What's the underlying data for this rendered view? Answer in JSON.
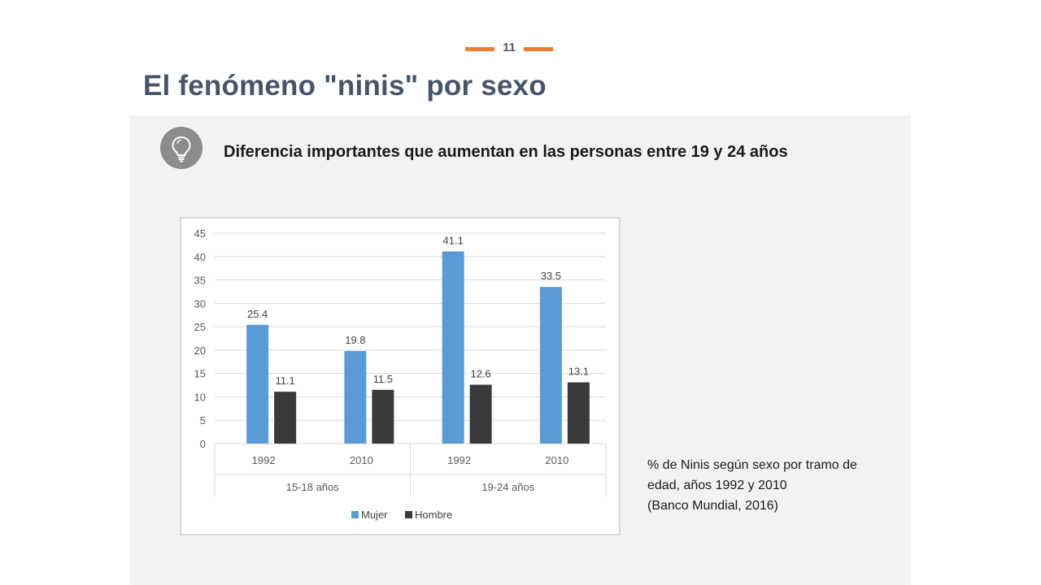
{
  "page_number": "11",
  "title": "El fenómeno \"ninis\" por sexo",
  "subtitle": "Diferencia importantes que aumentan en las personas entre 19 y 24 años",
  "icon": "lightbulb-icon",
  "colors": {
    "accent": "#ED7D31",
    "title": "#46546A",
    "panel": "#F2F2F2",
    "mujer": "#5B9BD5",
    "hombre": "#3A3A3A"
  },
  "caption": {
    "line1": "% de Ninis según sexo por tramo de",
    "line2": "edad, años 1992 y 2010",
    "line3": "(Banco Mundial, 2016)"
  },
  "chart_data": {
    "type": "bar",
    "categories": [
      "1992",
      "2010",
      "1992",
      "2010"
    ],
    "groups": [
      {
        "label": "15-18 años",
        "categories": [
          "1992",
          "2010"
        ]
      },
      {
        "label": "19-24 años",
        "categories": [
          "1992",
          "2010"
        ]
      }
    ],
    "series": [
      {
        "name": "Mujer",
        "values": [
          25.4,
          19.8,
          41.1,
          33.5
        ]
      },
      {
        "name": "Hombre",
        "values": [
          11.1,
          11.5,
          12.6,
          13.1
        ]
      }
    ],
    "data_labels": [
      [
        "25.4",
        "19.8",
        "41.1",
        "33.5"
      ],
      [
        "11.1",
        "11.5",
        "12.6",
        "13.1"
      ]
    ],
    "yticks": [
      "0",
      "5",
      "10",
      "15",
      "20",
      "25",
      "30",
      "35",
      "40",
      "45"
    ],
    "ylim": [
      0,
      45
    ],
    "grid": true,
    "legend_position": "bottom"
  }
}
